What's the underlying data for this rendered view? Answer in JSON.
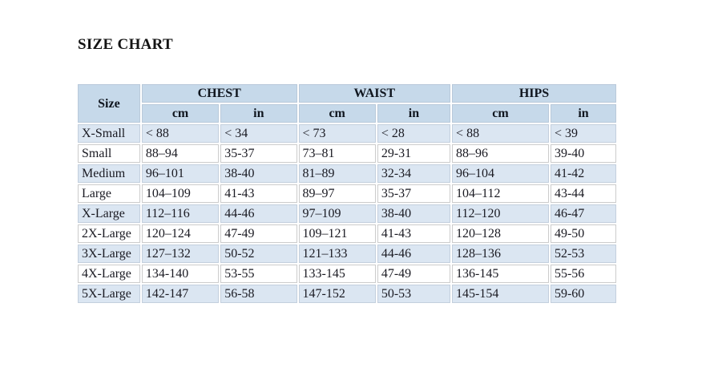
{
  "title": "SIZE CHART",
  "table": {
    "size_header": "Size",
    "groups": [
      {
        "label": "CHEST"
      },
      {
        "label": "WAIST"
      },
      {
        "label": "HIPS"
      }
    ],
    "unit_headers": [
      "cm",
      "in",
      "cm",
      "in",
      "cm",
      "in"
    ],
    "rows": [
      {
        "size": "X-Small",
        "cells": [
          "< 88",
          "< 34",
          "< 73",
          "< 28",
          "< 88",
          "< 39"
        ]
      },
      {
        "size": "Small",
        "cells": [
          "88–94",
          "35-37",
          "73–81",
          "29-31",
          "88–96",
          "39-40"
        ]
      },
      {
        "size": "Medium",
        "cells": [
          "96–101",
          "38-40",
          "81–89",
          "32-34",
          "96–104",
          "41-42"
        ]
      },
      {
        "size": "Large",
        "cells": [
          "104–109",
          "41-43",
          "89–97",
          "35-37",
          "104–112",
          "43-44"
        ]
      },
      {
        "size": "X-Large",
        "cells": [
          "112–116",
          "44-46",
          "97–109",
          "38-40",
          "112–120",
          "46-47"
        ]
      },
      {
        "size": "2X-Large",
        "cells": [
          "120–124",
          "47-49",
          "109–121",
          "41-43",
          "120–128",
          "49-50"
        ]
      },
      {
        "size": "3X-Large",
        "cells": [
          "127–132",
          "50-52",
          "121–133",
          "44-46",
          "128–136",
          "52-53"
        ]
      },
      {
        "size": "4X-Large",
        "cells": [
          "134-140",
          "53-55",
          "133-145",
          "47-49",
          "136-145",
          "55-56"
        ]
      },
      {
        "size": "5X-Large",
        "cells": [
          "142-147",
          "56-58",
          "147-152",
          "50-53",
          "145-154",
          "59-60"
        ]
      }
    ],
    "colors": {
      "header_bg": "#c6d9ea",
      "alt_row_bg": "#dbe6f2",
      "row_bg": "#ffffff"
    }
  }
}
